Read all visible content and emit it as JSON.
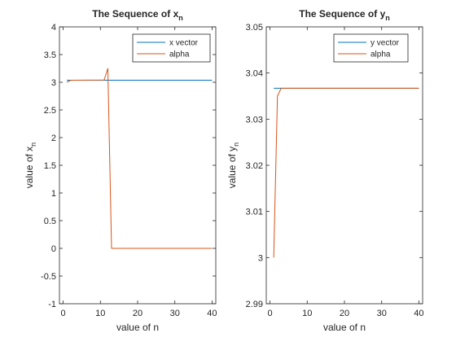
{
  "colors": {
    "series1": "#0072BD",
    "series2": "#D95319",
    "axis": "#262626",
    "background": "#ffffff"
  },
  "chart_data": [
    {
      "type": "line",
      "title": "The Sequence of x",
      "title_subscript": "n",
      "xlabel": "value of n",
      "ylabel": "value of x",
      "ylabel_subscript": "n",
      "xlim": [
        -1,
        41
      ],
      "ylim": [
        -1,
        4
      ],
      "xticks": [
        0,
        10,
        20,
        30,
        40
      ],
      "xtick_labels": [
        "0",
        "10",
        "20",
        "30",
        "40"
      ],
      "yticks": [
        -1,
        -0.5,
        0,
        0.5,
        1,
        1.5,
        2,
        2.5,
        3,
        3.5,
        4
      ],
      "ytick_labels": [
        "-1",
        "-0.5",
        "0",
        "0.5",
        "1",
        "1.5",
        "2",
        "2.5",
        "3",
        "3.5",
        "4"
      ],
      "legend_position": "top-right",
      "grid": false,
      "series": [
        {
          "name": "x vector",
          "color": "#0072BD",
          "x": [
            1,
            40
          ],
          "y": [
            3.036,
            3.036
          ]
        },
        {
          "name": "alpha",
          "color": "#D95319",
          "x": [
            1,
            2,
            3,
            11,
            12,
            13,
            40
          ],
          "y": [
            3.0,
            3.035,
            3.037,
            3.04,
            3.25,
            0,
            0
          ]
        }
      ]
    },
    {
      "type": "line",
      "title": "The Sequence of y",
      "title_subscript": "n",
      "xlabel": "value of n",
      "ylabel": "value of y",
      "ylabel_subscript": "n",
      "xlim": [
        -1,
        41
      ],
      "ylim": [
        2.99,
        3.05
      ],
      "xticks": [
        0,
        10,
        20,
        30,
        40
      ],
      "xtick_labels": [
        "0",
        "10",
        "20",
        "30",
        "40"
      ],
      "yticks": [
        2.99,
        3.0,
        3.01,
        3.02,
        3.03,
        3.04,
        3.05
      ],
      "ytick_labels": [
        "2.99",
        "3",
        "3.01",
        "3.02",
        "3.03",
        "3.04",
        "3.05"
      ],
      "legend_position": "top-right",
      "grid": false,
      "series": [
        {
          "name": "y vector",
          "color": "#0072BD",
          "x": [
            1,
            40
          ],
          "y": [
            3.0367,
            3.0367
          ]
        },
        {
          "name": "alpha",
          "color": "#D95319",
          "x": [
            1,
            2,
            3,
            40
          ],
          "y": [
            3.0,
            3.035,
            3.0367,
            3.0367
          ]
        }
      ]
    }
  ]
}
